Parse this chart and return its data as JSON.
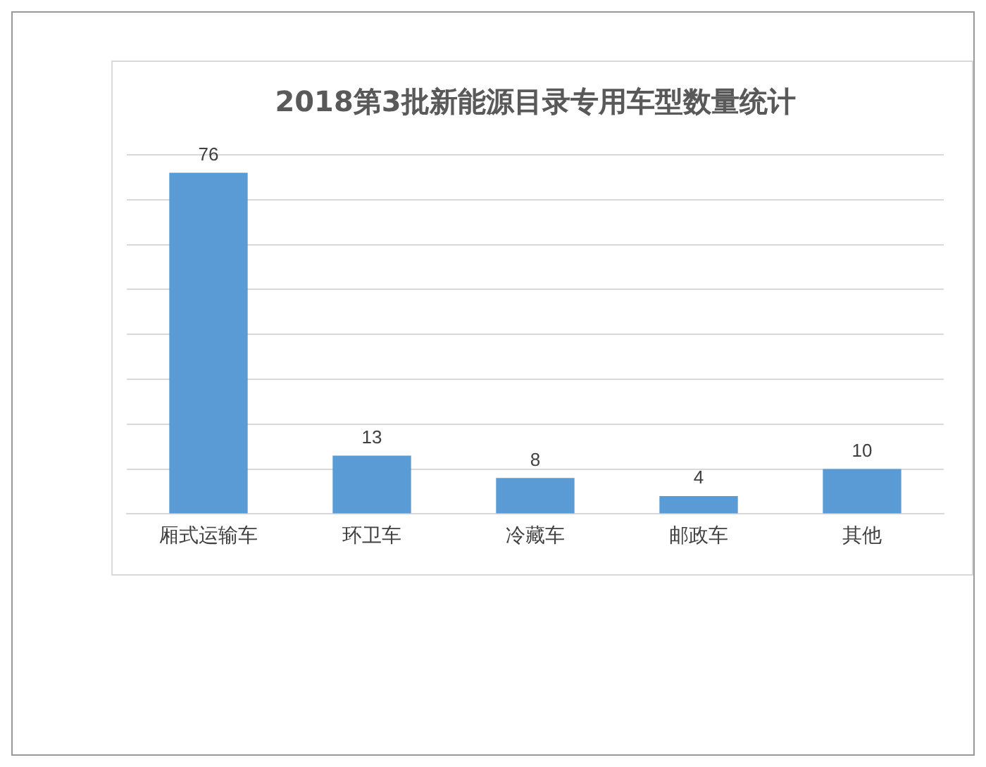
{
  "chart_data": {
    "type": "bar",
    "title": "2018第3批新能源目录专用车型数量统计",
    "categories": [
      "厢式运输车",
      "环卫车",
      "冷藏车",
      "邮政车",
      "其他"
    ],
    "values": [
      76,
      13,
      8,
      4,
      10
    ],
    "color": "#5b9bd5",
    "ylim": [
      0,
      80
    ],
    "yticks": [
      {
        "value": 0,
        "label": null
      },
      {
        "value": 10,
        "label": null
      },
      {
        "value": 20,
        "label": null
      },
      {
        "value": 30,
        "label": null
      },
      {
        "value": 40,
        "label": null
      },
      {
        "value": 50,
        "label": null
      },
      {
        "value": 60,
        "label": null
      },
      {
        "value": 70,
        "label": null
      },
      {
        "value": 80,
        "label": null
      }
    ],
    "tick_labels": "x",
    "grid": "y",
    "data_labels": true,
    "legend": false
  }
}
